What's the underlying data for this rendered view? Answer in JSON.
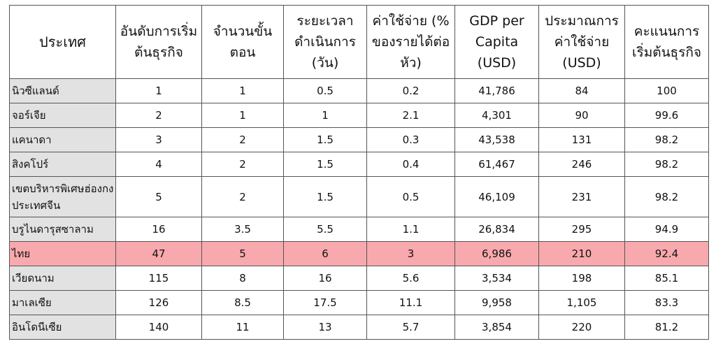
{
  "table": {
    "header": [
      "ประเทศ",
      "อันดับการเริ่มต้นธุรกิจ",
      "จำนวนขั้นตอน",
      "ระยะเวลาดำเนินการ (วัน)",
      "ค่าใช้จ่าย (% ของรายได้ต่อหัว)",
      "GDP per Capita (USD)",
      "ประมาณการค่าใช้จ่าย (USD)",
      "คะแนนการเริ่มต้นธุรกิจ"
    ],
    "rows": [
      [
        "นิวซีแลนด์",
        "1",
        "1",
        "0.5",
        "0.2",
        "41,786",
        "84",
        "100"
      ],
      [
        "จอร์เจีย",
        "2",
        "1",
        "1",
        "2.1",
        "4,301",
        "90",
        "99.6"
      ],
      [
        "แคนาดา",
        "3",
        "2",
        "1.5",
        "0.3",
        "43,538",
        "131",
        "98.2"
      ],
      [
        "สิงคโปร์",
        "4",
        "2",
        "1.5",
        "0.4",
        "61,467",
        "246",
        "98.2"
      ],
      [
        "เขตบริหารพิเศษฮ่องกง ประเทศจีน",
        "5",
        "2",
        "1.5",
        "0.5",
        "46,109",
        "231",
        "98.2"
      ],
      [
        "บรูไนดารุสซาลาม",
        "16",
        "3.5",
        "5.5",
        "1.1",
        "26,834",
        "295",
        "94.9"
      ],
      [
        "ไทย",
        "47",
        "5",
        "6",
        "3",
        "6,986",
        "210",
        "92.4"
      ],
      [
        "เวียดนาม",
        "115",
        "8",
        "16",
        "5.6",
        "3,534",
        "198",
        "85.1"
      ],
      [
        "มาเลเซีย",
        "126",
        "8.5",
        "17.5",
        "11.1",
        "9,958",
        "1,105",
        "83.3"
      ],
      [
        "อินโดนีเซีย",
        "140",
        "11",
        "13",
        "5.7",
        "3,854",
        "220",
        "81.2"
      ]
    ]
  }
}
